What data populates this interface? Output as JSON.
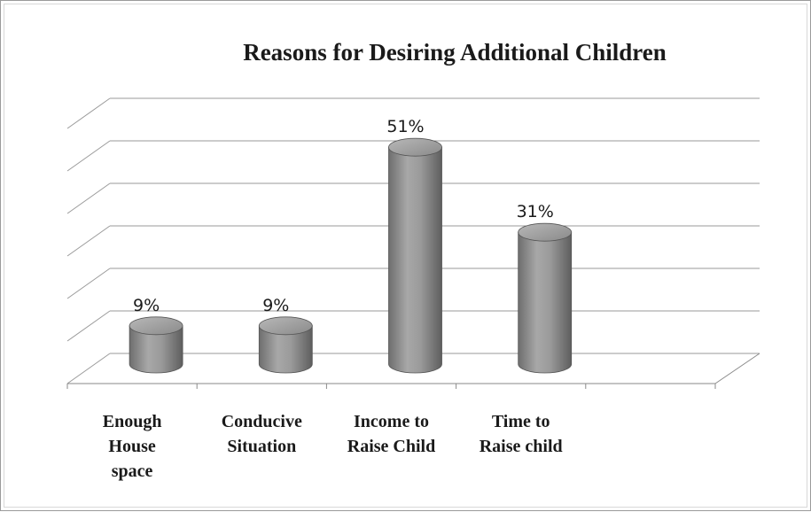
{
  "chart_data": {
    "type": "bar",
    "style": "3d-cylinder",
    "title": "Reasons for Desiring Additional Children",
    "categories": [
      [
        "Enough",
        "House",
        "space"
      ],
      [
        "Conducive",
        "Situation"
      ],
      [
        "Income to",
        "Raise Child"
      ],
      [
        "Time to",
        "Raise child"
      ]
    ],
    "values": [
      9,
      9,
      51,
      31
    ],
    "value_labels": [
      "9%",
      "9%",
      "51%",
      "31%"
    ],
    "unit": "%",
    "ylim": [
      0,
      60
    ],
    "grid": true,
    "legend": "none",
    "bar_color": "#8c8c8c"
  }
}
